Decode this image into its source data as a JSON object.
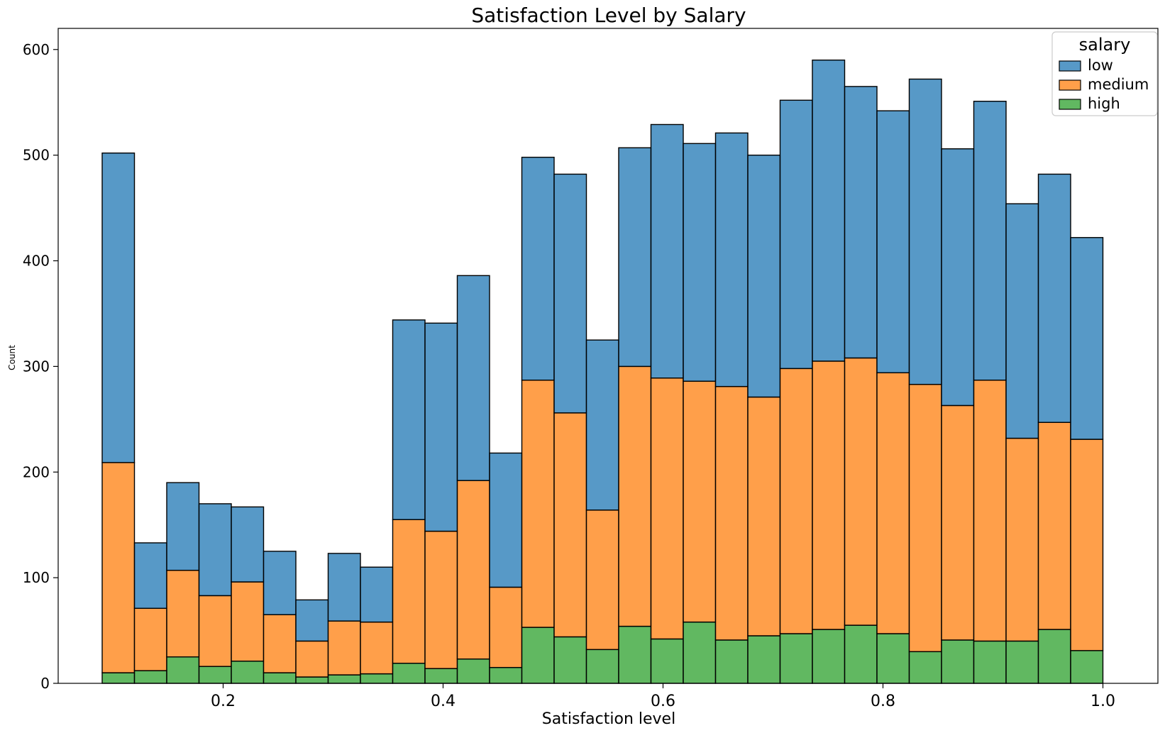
{
  "chart_data": {
    "type": "bar",
    "stacked": true,
    "histogram": true,
    "title": "Satisfaction Level by Salary",
    "xlabel": "Satisfaction level",
    "ylabel": "Count",
    "xlim": [
      0.05,
      1.05
    ],
    "ylim": [
      0,
      620
    ],
    "x_ticks": [
      0.2,
      0.4,
      0.6,
      0.8,
      1.0
    ],
    "x_tick_labels": [
      "0.2",
      "0.4",
      "0.6",
      "0.8",
      "1.0"
    ],
    "y_ticks": [
      0,
      100,
      200,
      300,
      400,
      500,
      600
    ],
    "y_tick_labels": [
      "0",
      "100",
      "200",
      "300",
      "400",
      "500",
      "600"
    ],
    "bin_range": [
      0.09,
      1.0
    ],
    "bins": 31,
    "legend": {
      "title": "salary",
      "position": "top-right"
    },
    "series": [
      {
        "name": "low",
        "color": "#1f77b4",
        "values": [
          293,
          62,
          83,
          87,
          71,
          60,
          39,
          64,
          52,
          189,
          197,
          194,
          127,
          211,
          226,
          161,
          207,
          240,
          225,
          240,
          229,
          254,
          285,
          257,
          248,
          289,
          243,
          264,
          222,
          235,
          191
        ]
      },
      {
        "name": "medium",
        "color": "#ff7f0e",
        "values": [
          199,
          59,
          82,
          67,
          75,
          55,
          34,
          51,
          49,
          136,
          130,
          169,
          76,
          234,
          212,
          132,
          246,
          247,
          228,
          240,
          226,
          251,
          254,
          253,
          247,
          253,
          222,
          247,
          192,
          196,
          200
        ]
      },
      {
        "name": "high",
        "color": "#2ca02c",
        "values": [
          10,
          12,
          25,
          16,
          21,
          10,
          6,
          8,
          9,
          19,
          14,
          23,
          15,
          53,
          44,
          32,
          54,
          42,
          58,
          41,
          45,
          47,
          51,
          55,
          47,
          30,
          41,
          40,
          40,
          51,
          31
        ]
      }
    ]
  }
}
